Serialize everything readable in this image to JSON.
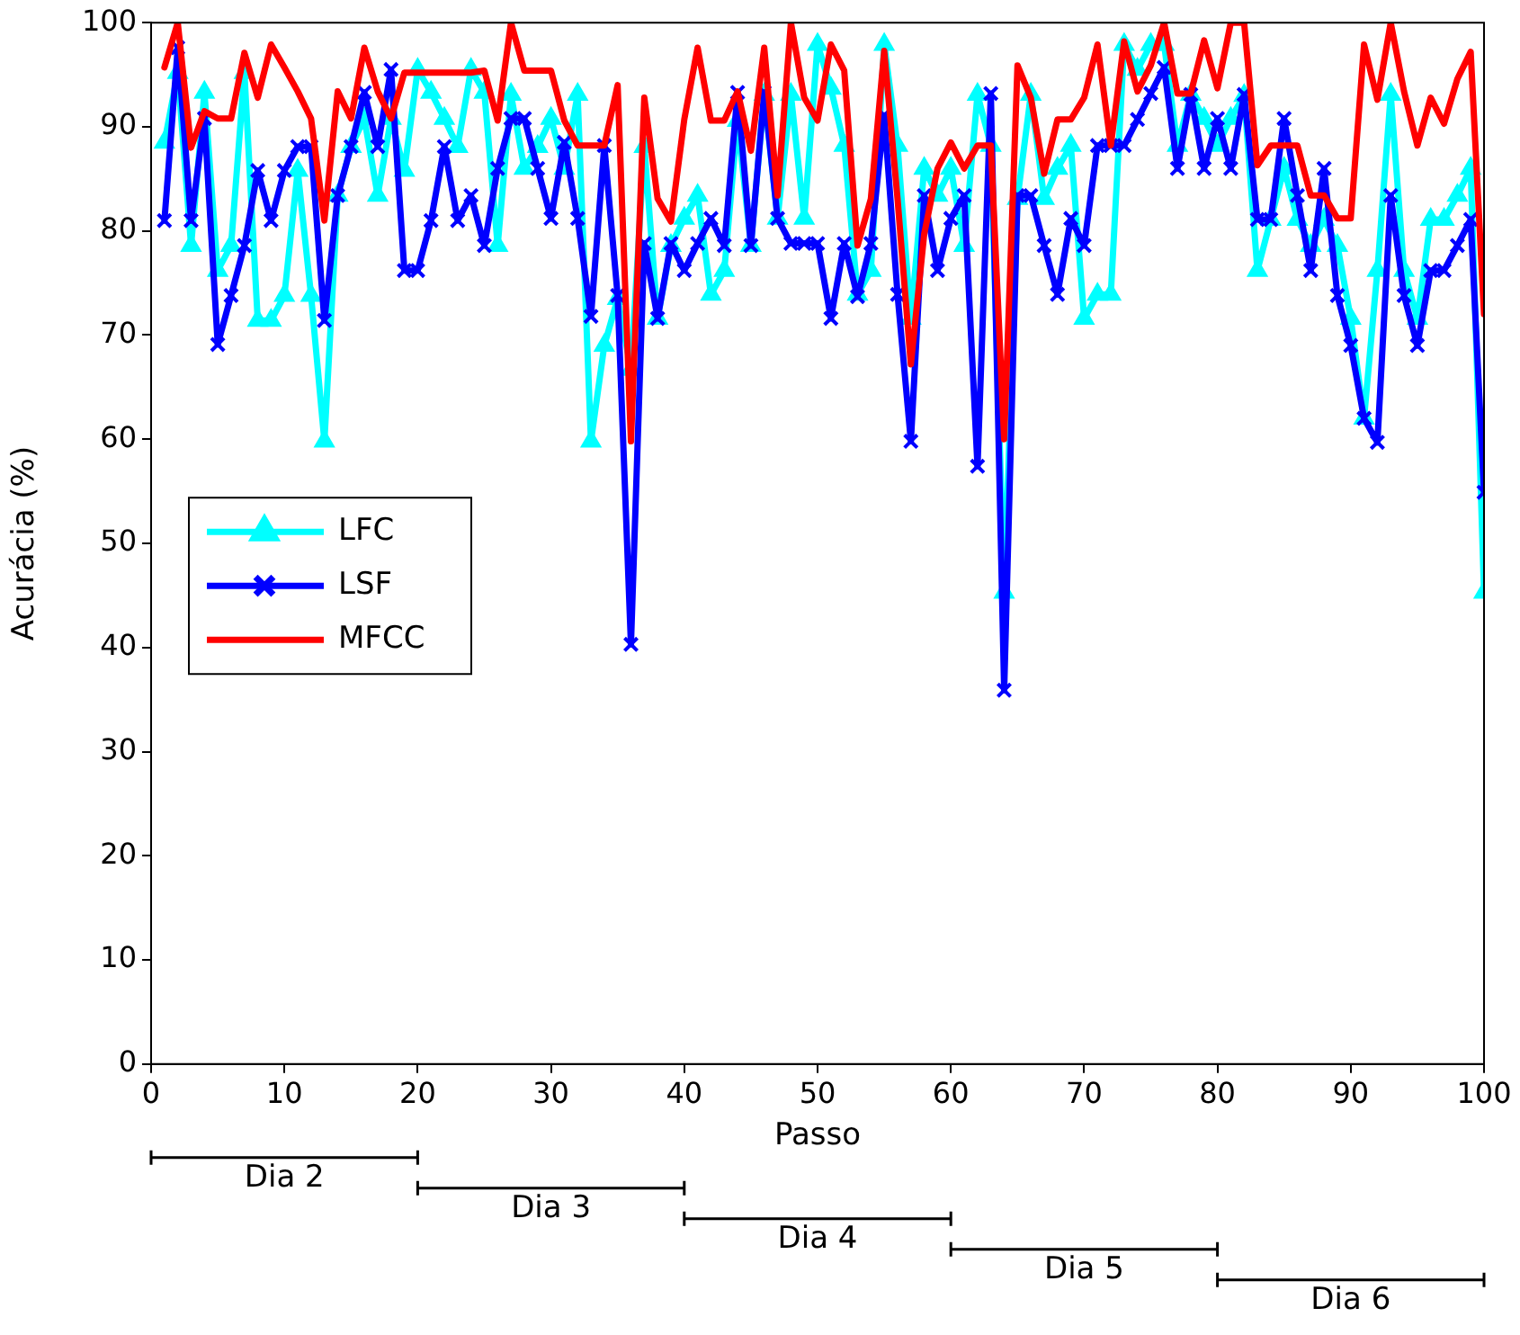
{
  "chart_data": {
    "type": "line",
    "xlabel": "Passo",
    "ylabel": "Acurácia (%)",
    "x": [
      1,
      2,
      3,
      4,
      5,
      6,
      7,
      8,
      9,
      10,
      11,
      12,
      13,
      14,
      15,
      16,
      17,
      18,
      19,
      20,
      21,
      22,
      23,
      24,
      25,
      26,
      27,
      28,
      29,
      30,
      31,
      32,
      33,
      34,
      35,
      36,
      37,
      38,
      39,
      40,
      41,
      42,
      43,
      44,
      45,
      46,
      47,
      48,
      49,
      50,
      51,
      52,
      53,
      54,
      55,
      56,
      57,
      58,
      59,
      60,
      61,
      62,
      63,
      64,
      65,
      66,
      67,
      68,
      69,
      70,
      71,
      72,
      73,
      74,
      75,
      76,
      77,
      78,
      79,
      80,
      81,
      82,
      83,
      84,
      85,
      86,
      87,
      88,
      89,
      90,
      91,
      92,
      93,
      94,
      95,
      96,
      97,
      98,
      99,
      100
    ],
    "series": [
      {
        "name": "LFC",
        "color": "#00ffff",
        "marker": "triangle",
        "values": [
          88.5,
          95.2,
          78.6,
          93.3,
          76.2,
          78.6,
          95.2,
          71.4,
          71.4,
          73.8,
          85.8,
          73.8,
          59.8,
          83.4,
          88.1,
          90.8,
          83.4,
          90.8,
          85.8,
          95.5,
          93.3,
          90.8,
          88.1,
          95.5,
          93.3,
          78.6,
          93.1,
          86,
          88.1,
          90.8,
          86,
          93.1,
          59.8,
          69,
          73.5,
          66.7,
          88.1,
          71.6,
          78.6,
          81.2,
          83.4,
          73.9,
          76.2,
          90.6,
          78.6,
          93.1,
          81.2,
          93.1,
          81.2,
          97.9,
          93.7,
          88.2,
          73.9,
          76.2,
          97.9,
          88.2,
          71.6,
          86,
          83.4,
          86,
          78.6,
          93.1,
          88.2,
          45.3,
          83.1,
          93.1,
          83.1,
          86,
          88.2,
          71.6,
          73.9,
          73.9,
          97.9,
          95.5,
          97.9,
          97.9,
          88.2,
          93.1,
          90.8,
          88.2,
          90.8,
          93,
          76.2,
          81.1,
          86,
          81.1,
          78.6,
          81.1,
          78.6,
          71.6,
          62,
          76.2,
          93.1,
          76.2,
          71.6,
          81.1,
          81.1,
          83.4,
          86,
          45.3
        ]
      },
      {
        "name": "LSF",
        "color": "#0000ff",
        "marker": "cross",
        "values": [
          81,
          97.6,
          81,
          90.8,
          69.1,
          73.8,
          78.6,
          85.8,
          81,
          85.8,
          88.1,
          88.1,
          71.4,
          83.4,
          88.1,
          93.3,
          88.1,
          95.5,
          76.2,
          76.2,
          81,
          88.1,
          81,
          83.4,
          78.6,
          86,
          90.8,
          90.8,
          86,
          81.2,
          88.5,
          81.2,
          71.8,
          88.2,
          73.8,
          40.3,
          78.8,
          71.6,
          78.8,
          76.2,
          78.8,
          81.2,
          78.6,
          93.3,
          78.6,
          93.3,
          81.2,
          78.8,
          78.8,
          78.8,
          71.6,
          78.8,
          73.7,
          78.8,
          91.1,
          73.9,
          59.8,
          83.4,
          76.2,
          81.2,
          83.4,
          57.4,
          93.2,
          35.9,
          83.4,
          83.4,
          78.6,
          73.9,
          81.2,
          78.6,
          88.2,
          88.2,
          88.2,
          90.7,
          93.2,
          95.7,
          86,
          93.1,
          86,
          90.8,
          86,
          93.1,
          81.1,
          81.1,
          90.8,
          83.4,
          76.2,
          86,
          73.8,
          69,
          62,
          59.7,
          83.4,
          73.8,
          69,
          76.2,
          76.2,
          78.6,
          81.1,
          54.9
        ]
      },
      {
        "name": "MFCC",
        "color": "#ff0000",
        "marker": "none",
        "values": [
          95.7,
          100,
          88,
          91.5,
          90.8,
          90.8,
          97.1,
          92.8,
          97.9,
          95.7,
          93.4,
          90.8,
          81,
          93.4,
          90.8,
          97.6,
          93.4,
          90.8,
          95.2,
          95.2,
          95.2,
          95.2,
          95.2,
          95.2,
          95.4,
          90.6,
          100,
          95.4,
          95.4,
          95.4,
          90.6,
          88.2,
          88.2,
          88.2,
          94,
          59.8,
          92.8,
          83.1,
          80.9,
          90.7,
          97.6,
          90.6,
          90.6,
          93.4,
          87.7,
          97.6,
          83.4,
          100,
          92.8,
          90.6,
          97.9,
          95.4,
          78.6,
          83.1,
          97.3,
          83.1,
          67.2,
          79.7,
          86,
          88.5,
          86,
          88.2,
          88.2,
          60,
          95.9,
          92.8,
          85.5,
          90.7,
          90.7,
          92.8,
          97.9,
          88.2,
          98.2,
          93.4,
          95.9,
          100,
          93.2,
          93.2,
          98.3,
          93.7,
          100,
          100,
          86.3,
          88.2,
          88.2,
          88.2,
          83.4,
          83.4,
          81.2,
          81.2,
          97.9,
          92.6,
          100,
          93.4,
          88.2,
          92.8,
          90.3,
          94.6,
          97.2,
          72
        ]
      }
    ],
    "xlim": [
      0,
      100
    ],
    "xticks": [
      0,
      10,
      20,
      30,
      40,
      50,
      60,
      70,
      80,
      90,
      100
    ],
    "ylim": [
      0,
      100
    ],
    "yticks": [
      0,
      10,
      20,
      30,
      40,
      50,
      60,
      70,
      80,
      90,
      100
    ],
    "grid": false,
    "legend": "left",
    "annotations": [
      "Dia 2",
      "Dia 3",
      "Dia 4",
      "Dia 5",
      "Dia 6"
    ]
  }
}
